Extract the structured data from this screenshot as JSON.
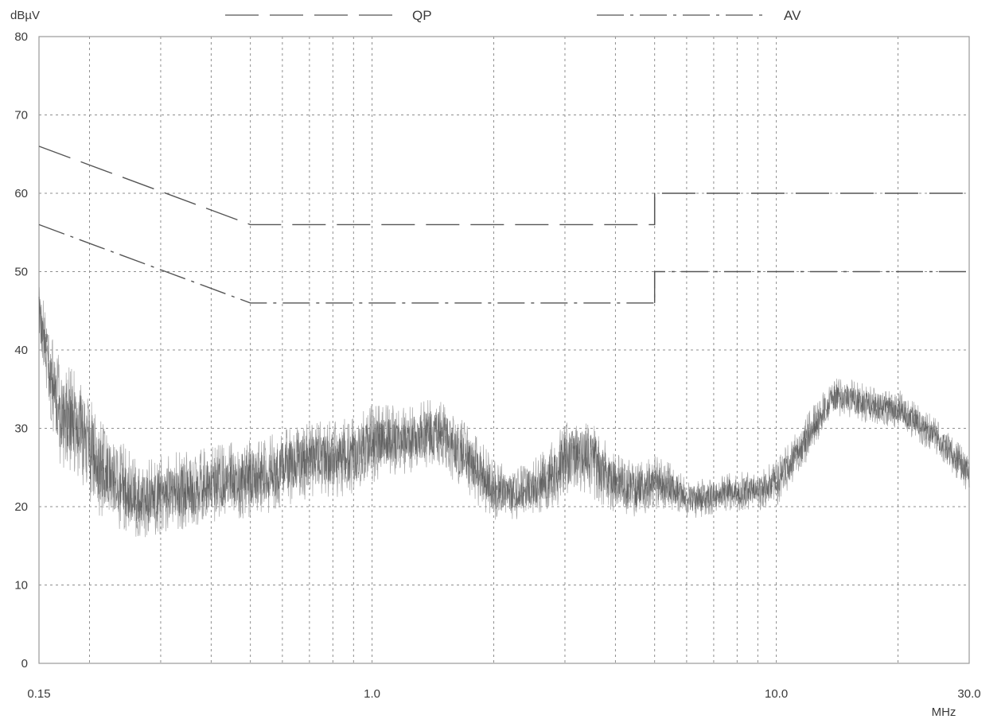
{
  "chart_data": {
    "type": "line",
    "title": "",
    "ylabel": "dBµV",
    "xlabel": "MHz",
    "x_scale": "log",
    "xlim": [
      0.15,
      30.0
    ],
    "ylim": [
      0,
      80
    ],
    "y_ticks": [
      0,
      10,
      20,
      30,
      40,
      50,
      60,
      70,
      80
    ],
    "y_tick_labels": [
      "0",
      "10",
      "20",
      "30",
      "40",
      "50",
      "60",
      "70",
      "80"
    ],
    "x_tick_labels": [
      {
        "x": 0.15,
        "label": "0.15"
      },
      {
        "x": 1.0,
        "label": "1.0"
      },
      {
        "x": 10.0,
        "label": "10.0"
      },
      {
        "x": 30.0,
        "label": "30.0"
      }
    ],
    "x_grid": [
      0.2,
      0.3,
      0.4,
      0.5,
      0.6,
      0.7,
      0.8,
      0.9,
      1.0,
      2.0,
      3.0,
      4.0,
      5.0,
      6.0,
      7.0,
      8.0,
      9.0,
      10.0,
      20.0,
      30.0
    ],
    "grid": true,
    "legend_position": "top",
    "limit_lines": [
      {
        "name": "QP",
        "style": "long-dash",
        "points": [
          [
            0.15,
            66
          ],
          [
            0.5,
            56
          ],
          [
            5.0,
            56
          ],
          [
            5.0,
            60
          ],
          [
            30.0,
            60
          ]
        ]
      },
      {
        "name": "AV",
        "style": "dash-dot",
        "points": [
          [
            0.15,
            56
          ],
          [
            0.5,
            46
          ],
          [
            5.0,
            46
          ],
          [
            5.0,
            50
          ],
          [
            30.0,
            50
          ]
        ]
      }
    ],
    "measurement_series": {
      "style": "noisy-trace",
      "x": [
        0.15,
        0.155,
        0.16,
        0.17,
        0.18,
        0.19,
        0.2,
        0.22,
        0.24,
        0.26,
        0.28,
        0.3,
        0.33,
        0.36,
        0.4,
        0.45,
        0.5,
        0.55,
        0.6,
        0.7,
        0.8,
        0.9,
        1.0,
        1.1,
        1.2,
        1.3,
        1.4,
        1.5,
        1.6,
        1.8,
        2.0,
        2.2,
        2.5,
        2.8,
        3.0,
        3.3,
        3.6,
        4.0,
        4.5,
        5.0,
        5.5,
        6.0,
        6.5,
        7.0,
        8.0,
        9.0,
        10.0,
        11.0,
        12.0,
        13.0,
        14.0,
        15.0,
        17.0,
        19.0,
        20.0,
        22.0,
        25.0,
        28.0,
        30.0
      ],
      "y": [
        45,
        41,
        36,
        32,
        31,
        30,
        27,
        24,
        23,
        21,
        21,
        21.5,
        22,
        22,
        23,
        23.5,
        23.5,
        24,
        25,
        26,
        26,
        26.5,
        28,
        28.5,
        28.5,
        29,
        29.5,
        29,
        27.5,
        25,
        22,
        21.5,
        22.5,
        24,
        26,
        27,
        25.5,
        23,
        22,
        23,
        22.5,
        21,
        21,
        21.5,
        22,
        22,
        23,
        26,
        29,
        32,
        34,
        34,
        33,
        32.5,
        32.5,
        31,
        29,
        26,
        24
      ],
      "spread": [
        5,
        5,
        6,
        7,
        7,
        7,
        7,
        6,
        6,
        5,
        5,
        5,
        5,
        5,
        5,
        5,
        5,
        5,
        5,
        5,
        5,
        5,
        5,
        4.5,
        4.5,
        4.5,
        4.5,
        4.5,
        4.5,
        4.5,
        4,
        3.5,
        3.5,
        4.5,
        5,
        5,
        5,
        4,
        3.5,
        3.5,
        3,
        2.5,
        2.5,
        2.5,
        2.5,
        2.5,
        3,
        3,
        3,
        2.5,
        2.5,
        2.5,
        2.5,
        2.5,
        2.5,
        2.5,
        2.5,
        2.5,
        2.5
      ]
    }
  },
  "legend": {
    "qp_label": "QP",
    "av_label": "AV"
  },
  "colors": {
    "limit_line": "#555555",
    "trace_light": "#9a9a9a",
    "trace_dark": "#4a4a4a",
    "grid": "#8f8f8f",
    "frame": "#999999"
  }
}
